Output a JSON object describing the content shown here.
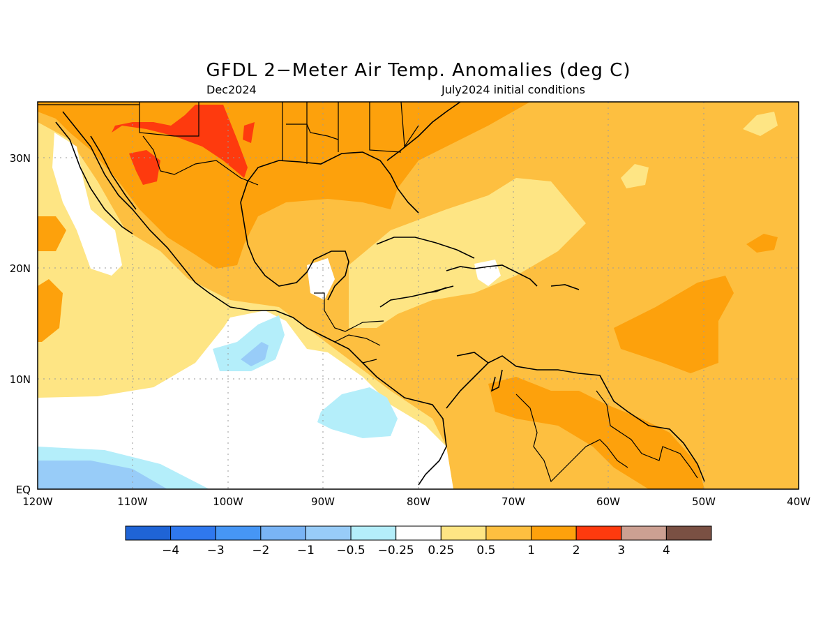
{
  "title": "GFDL 2−Meter Air Temp. Anomalies (deg C)",
  "subtitle_left": "Dec2024",
  "subtitle_right": "July2024 initial conditions",
  "axes": {
    "x_ticks": [
      "120W",
      "110W",
      "100W",
      "90W",
      "80W",
      "70W",
      "60W",
      "50W",
      "40W"
    ],
    "y_ticks": [
      "EQ",
      "10N",
      "20N",
      "30N"
    ]
  },
  "colorbar": {
    "colors": [
      "#1f64d6",
      "#2f78ee",
      "#4696f5",
      "#79b4f5",
      "#98ccf8",
      "#b4eefa",
      "#ffffff",
      "#fee584",
      "#fdbf40",
      "#fda10c",
      "#fe3a0e",
      "#cca092",
      "#7a5043"
    ],
    "labels": [
      "−4",
      "−3",
      "−2",
      "−1",
      "−0.5",
      "−0.25",
      "0.25",
      "0.5",
      "1",
      "2",
      "3",
      "4"
    ]
  },
  "map": {
    "extent": {
      "lon": [
        -120,
        -40
      ],
      "lat": [
        0,
        35
      ]
    },
    "background_category": "0.5 to 1"
  }
}
